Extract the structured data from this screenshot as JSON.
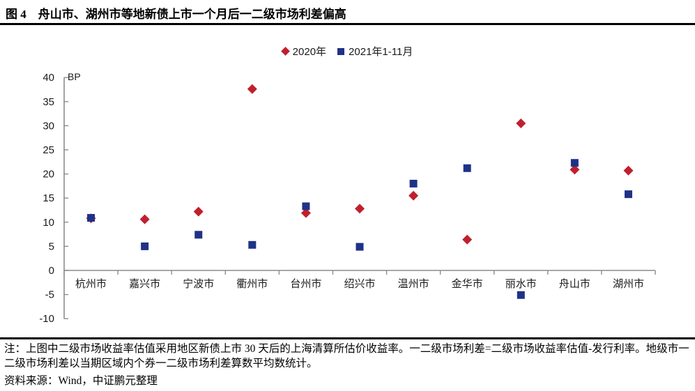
{
  "title": "图 4　舟山市、湖州市等地新债上市一个月后一二级市场利差偏高",
  "legend": [
    {
      "label": "2020年",
      "marker": "diamond",
      "color": "#c0202e"
    },
    {
      "label": "2021年1-11月",
      "marker": "square",
      "color": "#1f3287"
    }
  ],
  "chart_data": {
    "type": "scatter",
    "title": "",
    "unit_label": "BP",
    "categories": [
      "杭州市",
      "嘉兴市",
      "宁波市",
      "衢州市",
      "台州市",
      "绍兴市",
      "温州市",
      "金华市",
      "丽水市",
      "舟山市",
      "湖州市"
    ],
    "series": [
      {
        "name": "2020年",
        "marker": "diamond",
        "color": "#c0202e",
        "values": [
          10.8,
          10.6,
          12.2,
          37.6,
          11.9,
          12.8,
          15.5,
          6.4,
          30.5,
          20.9,
          20.7
        ]
      },
      {
        "name": "2021年1-11月",
        "marker": "square",
        "color": "#1f3287",
        "values": [
          10.9,
          5.0,
          7.4,
          5.3,
          13.3,
          4.9,
          18.0,
          21.2,
          -5.1,
          22.3,
          15.8
        ]
      }
    ],
    "ylim": [
      -10,
      40
    ],
    "ytick_step": 5,
    "xlabel": "",
    "ylabel": "BP",
    "grid": false,
    "legend_position": "top-center",
    "axis_color": "#8c8c8c",
    "tick_label_color": "#1a1a1a"
  },
  "footnote": {
    "note": "注：上图中二级市场收益率估值采用地区新债上市 30 天后的上海清算所估价收益率。一二级市场利差=二级市场收益率估值-发行利率。地级市一二级市场利差以当期区域内个券一二级市场利差算数平均数统计。",
    "source": "资料来源：Wind，中证鹏元整理"
  }
}
